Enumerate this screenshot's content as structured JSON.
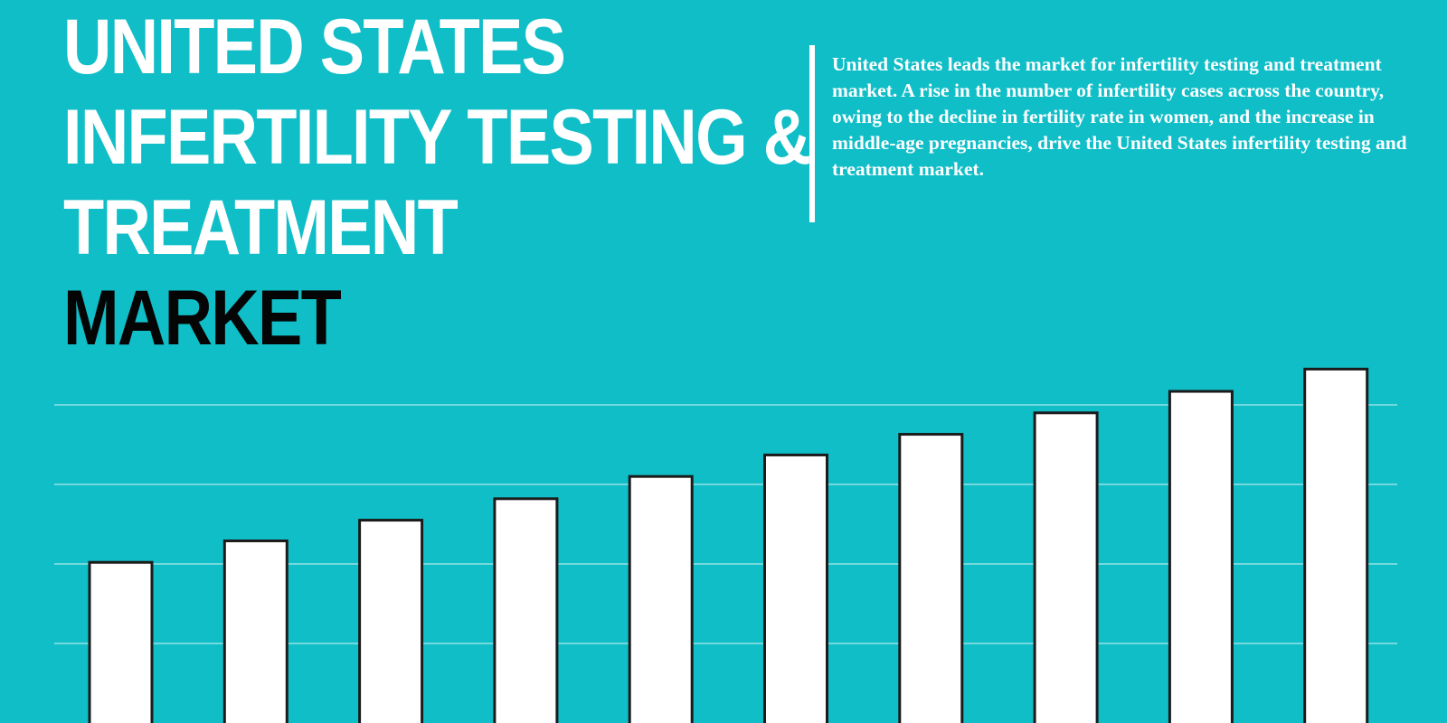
{
  "header": {
    "title_lines": [
      "UNITED STATES",
      "INFERTILITY TESTING &",
      "TREATMENT"
    ],
    "title_accent": "MARKET",
    "description": "United States leads the market for infertility testing and treatment market. A rise in the number of infertility cases across the country, owing to the decline in fertility rate in women, and the increase in middle-age pregnancies, drive the United States infertility testing and treatment market."
  },
  "colors": {
    "background": "#10bec7",
    "bar_fill": "#ffffff",
    "bar_stroke": "#1b1b1b",
    "grid": "#d8f4f6",
    "title_text": "#ffffff",
    "accent_text": "#050505"
  },
  "chart_data": {
    "type": "bar",
    "categories": [
      "",
      "",
      "",
      "",
      "",
      "",
      "",
      "",
      "",
      ""
    ],
    "values": [
      20.2,
      22.9,
      25.5,
      28.2,
      31.0,
      33.7,
      36.3,
      39.0,
      41.7,
      44.5
    ],
    "ylim": [
      0,
      50
    ],
    "grid": true,
    "gridlines": [
      10,
      20,
      30,
      40
    ],
    "xlabel": "",
    "ylabel": "",
    "legend": "none"
  }
}
